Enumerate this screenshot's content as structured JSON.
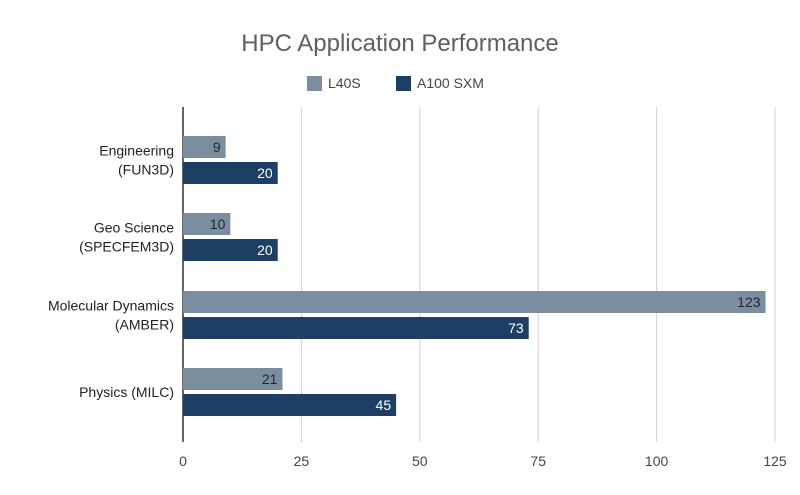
{
  "chart_data": {
    "type": "bar",
    "orientation": "horizontal",
    "title": "HPC Application Performance",
    "categories": [
      [
        "Engineering",
        "(FUN3D)"
      ],
      [
        "Geo Science",
        "(SPECFEM3D)"
      ],
      [
        "Molecular Dynamics",
        "(AMBER)"
      ],
      [
        "Physics (MILC)"
      ]
    ],
    "series": [
      {
        "name": "L40S",
        "color": "#7b8ea0",
        "label_color": "#1b2733",
        "values": [
          9,
          10,
          123,
          21
        ]
      },
      {
        "name": "A100 SXM",
        "color": "#1c3f63",
        "label_color": "#ffffff",
        "values": [
          20,
          20,
          73,
          45
        ]
      }
    ],
    "xlim": [
      0,
      125
    ],
    "xticks": [
      0,
      25,
      50,
      75,
      100,
      125
    ],
    "grid": true,
    "legend": "top-center",
    "xlabel": "",
    "ylabel": ""
  }
}
